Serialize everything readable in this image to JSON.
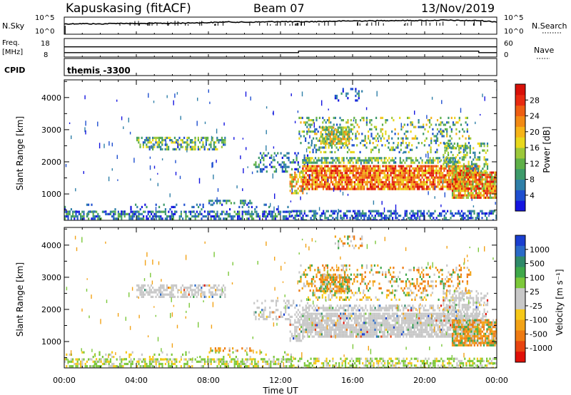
{
  "header": {
    "station": "Kapuskasing (fitACF)",
    "beam": "Beam 07",
    "date": "13/Nov/2019"
  },
  "side_labels": {
    "nsky": "N.Sky",
    "freq": "Freq.",
    "freq_unit": "[MHz]",
    "cpid": "CPID",
    "nsearch": "N.Search",
    "nave": "Nave"
  },
  "cpid_text": "themis -3300",
  "chart_data": [
    {
      "type": "line",
      "name": "noise",
      "series": [
        {
          "name": "N.Sky",
          "values": [
            3,
            3.1,
            3.0,
            3.2,
            3.1,
            3.2,
            3.2,
            3.3,
            3.4,
            3.6,
            3.5,
            3.6,
            3.7,
            3.6,
            3.7,
            3.8,
            3.9,
            3.9,
            4.0,
            4.0,
            4.0,
            4.1,
            4.0,
            4.0,
            3.6
          ]
        }
      ],
      "y_ticks_left": [
        "10^5",
        "10^0"
      ],
      "y_ticks_right": [
        "10^5",
        "10^0"
      ]
    },
    {
      "type": "line",
      "name": "frequency",
      "series": [
        {
          "name": "Freq",
          "values": [
            10.4,
            10.4,
            10.4,
            10.4,
            10.4,
            10.4,
            10.4,
            10.4,
            10.4,
            10.4,
            10.4,
            10.4,
            10.4,
            11.2,
            11.2,
            11.2,
            11.2,
            11.2,
            11.2,
            11.2,
            11.2,
            11.2,
            11.2,
            10.4,
            10.4
          ]
        },
        {
          "name": "Nave",
          "values": [
            33,
            33,
            33,
            33,
            33,
            33,
            33,
            33,
            33,
            33,
            33,
            33,
            33,
            33,
            33,
            33,
            33,
            33,
            33,
            33,
            33,
            33,
            33,
            33,
            33
          ]
        }
      ],
      "y_ticks_left": [
        "18",
        "8"
      ],
      "y_ticks_right": [
        "60",
        "0"
      ]
    },
    {
      "type": "heatmap",
      "name": "power",
      "xlabel": "",
      "ylabel": "Slant Range [km]",
      "y_ticks": [
        "1000",
        "2000",
        "3000",
        "4000"
      ],
      "ylim": [
        180,
        4550
      ],
      "x_ticks": [
        "00:00",
        "04:00",
        "08:00",
        "12:00",
        "16:00",
        "20:00",
        "00:00"
      ],
      "xlim": [
        0,
        24
      ],
      "colorbar": {
        "label": "Power [dB]",
        "ticks": [
          "4",
          "8",
          "12",
          "16",
          "20",
          "24",
          "28"
        ],
        "colors": [
          "#1515e0",
          "#1f4fd0",
          "#2f7fa8",
          "#3d9a6a",
          "#5fb048",
          "#9cc83a",
          "#e8d81c",
          "#f6b418",
          "#f28a14",
          "#ee5e12",
          "#e82a10",
          "#d81008"
        ]
      }
    },
    {
      "type": "heatmap",
      "name": "velocity",
      "xlabel": "Time UT",
      "ylabel": "Slant Range [km]",
      "y_ticks": [
        "1000",
        "2000",
        "3000",
        "4000"
      ],
      "ylim": [
        180,
        4550
      ],
      "x_ticks": [
        "00:00",
        "04:00",
        "08:00",
        "12:00",
        "16:00",
        "20:00",
        "00:00"
      ],
      "xlim": [
        0,
        24
      ],
      "colorbar": {
        "label": "Velocity [m s⁻¹]",
        "ticks": [
          "1000",
          "500",
          "100",
          "25",
          "-25",
          "-100",
          "-500",
          "-1000"
        ],
        "colors": [
          "#1a3fd0",
          "#2a6ac8",
          "#2f8a6a",
          "#3fa84a",
          "#7cc83a",
          "#c8c8c8",
          "#c8c8c8",
          "#f6c818",
          "#f2a216",
          "#ee7a12",
          "#e84410",
          "#e01008"
        ]
      }
    }
  ]
}
